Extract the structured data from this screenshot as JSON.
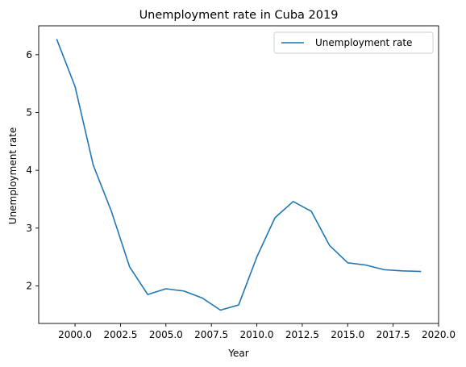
{
  "chart_data": {
    "type": "line",
    "title": "Unemployment rate in Cuba 2019",
    "xlabel": "Year",
    "ylabel": "Unemployment rate",
    "xlim": [
      1998.0,
      2020.0
    ],
    "ylim": [
      1.35,
      6.5
    ],
    "xticks": [
      2000.0,
      2002.5,
      2005.0,
      2007.5,
      2010.0,
      2012.5,
      2015.0,
      2017.5,
      2020.0
    ],
    "xtick_labels": [
      "2000.0",
      "2002.5",
      "2005.0",
      "2007.5",
      "2010.0",
      "2012.5",
      "2015.0",
      "2017.5",
      "2020.0"
    ],
    "yticks": [
      2,
      3,
      4,
      5,
      6
    ],
    "ytick_labels": [
      "2",
      "3",
      "4",
      "5",
      "6"
    ],
    "grid": false,
    "legend": {
      "position": "top-right"
    },
    "series": [
      {
        "name": "Unemployment rate",
        "color": "#1f77b4",
        "x": [
          1999,
          2000,
          2001,
          2002,
          2003,
          2004,
          2005,
          2006,
          2007,
          2008,
          2009,
          2010,
          2011,
          2012,
          2013,
          2014,
          2015,
          2016,
          2017,
          2018,
          2019
        ],
        "y": [
          6.26,
          5.45,
          4.09,
          3.29,
          2.33,
          1.85,
          1.95,
          1.91,
          1.79,
          1.58,
          1.67,
          2.5,
          3.18,
          3.46,
          3.29,
          2.7,
          2.4,
          2.36,
          2.28,
          2.26,
          2.25
        ]
      }
    ]
  }
}
